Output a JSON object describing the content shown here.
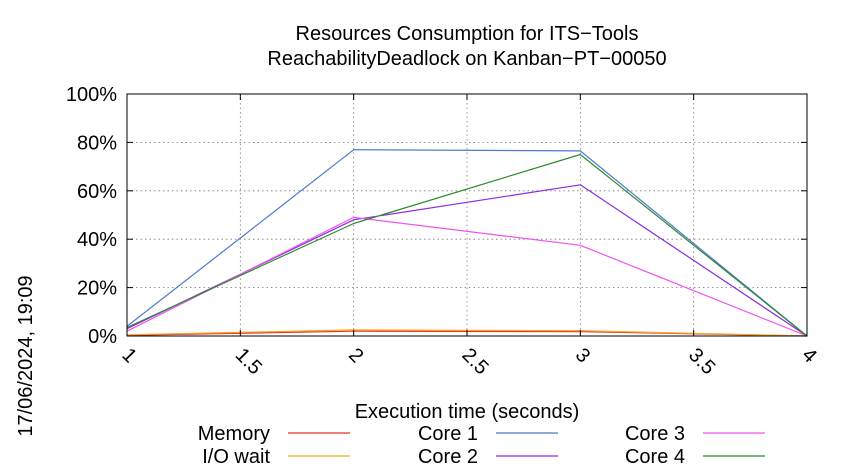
{
  "chart_data": {
    "type": "line",
    "title": "Resources Consumption for ITS−Tools",
    "subtitle": "ReachabilityDeadlock on Kanban−PT−00050",
    "xlabel": "Execution time (seconds)",
    "ylabel": "",
    "side_label": "17/06/2024, 19:09",
    "xlim": [
      1,
      4
    ],
    "ylim": [
      0,
      100
    ],
    "x_ticks": [
      {
        "value": 1,
        "label": "1"
      },
      {
        "value": 1.5,
        "label": "1.5"
      },
      {
        "value": 2,
        "label": "2"
      },
      {
        "value": 2.5,
        "label": "2.5"
      },
      {
        "value": 3,
        "label": "3"
      },
      {
        "value": 3.5,
        "label": "3.5"
      },
      {
        "value": 4,
        "label": "4"
      }
    ],
    "y_ticks": [
      {
        "value": 0,
        "label": "0%"
      },
      {
        "value": 20,
        "label": "20%"
      },
      {
        "value": 40,
        "label": "40%"
      },
      {
        "value": 60,
        "label": "60%"
      },
      {
        "value": 80,
        "label": "80%"
      },
      {
        "value": 100,
        "label": "100%"
      }
    ],
    "grid": true,
    "legend_position": "bottom",
    "series": [
      {
        "name": "Memory",
        "color": "#e8332a",
        "x": [
          1,
          2,
          3,
          4
        ],
        "values": [
          0.3,
          2.0,
          1.8,
          0
        ]
      },
      {
        "name": "I/O wait",
        "color": "#f5a623",
        "x": [
          1,
          2,
          3,
          4
        ],
        "values": [
          0.5,
          2.5,
          2.2,
          0
        ]
      },
      {
        "name": "Core 1",
        "color": "#4f79cf",
        "x": [
          1,
          2,
          3,
          4
        ],
        "values": [
          4,
          77,
          76.5,
          0
        ]
      },
      {
        "name": "Core 2",
        "color": "#8a2be2",
        "x": [
          1,
          2,
          3,
          4
        ],
        "values": [
          3,
          48,
          62.5,
          0
        ]
      },
      {
        "name": "Core 3",
        "color": "#ee55ee",
        "x": [
          1,
          2,
          3,
          4
        ],
        "values": [
          2,
          49,
          37.5,
          0
        ]
      },
      {
        "name": "Core 4",
        "color": "#2e8b2e",
        "x": [
          1,
          2,
          3,
          4
        ],
        "values": [
          3.5,
          46.5,
          75,
          0
        ]
      }
    ]
  }
}
